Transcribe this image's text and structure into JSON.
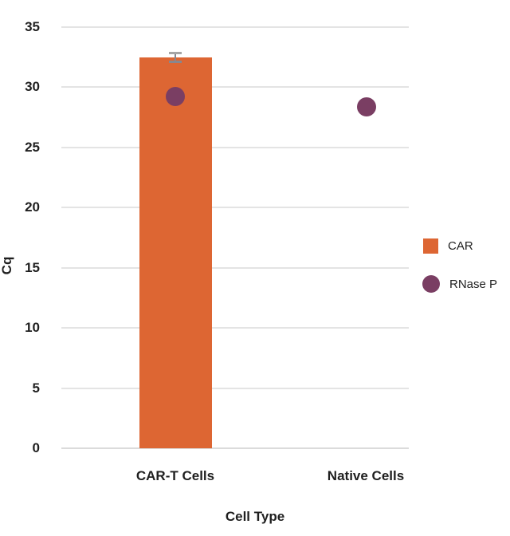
{
  "chart_data": {
    "type": "bar",
    "title": "",
    "xlabel": "Cell Type",
    "ylabel": "Cq",
    "categories": [
      "CAR-T Cells",
      "Native Cells"
    ],
    "series": [
      {
        "name": "CAR",
        "kind": "bar",
        "color": "#DD6633",
        "values": [
          32.5,
          null
        ],
        "error": [
          0.35,
          null
        ]
      },
      {
        "name": "RNase P",
        "kind": "point",
        "color": "#7A3E63",
        "values": [
          29.2,
          28.4
        ]
      }
    ],
    "ylim": [
      0,
      35
    ],
    "ytick_step": 5,
    "yticks": [
      0,
      5,
      10,
      15,
      20,
      25,
      30,
      35
    ],
    "grid": true,
    "legend_position": "right",
    "colors": {
      "gridline": "#E4E4E4",
      "baseline": "#DBDBDB",
      "error_bar": "#87878F",
      "error_cap": "#A6A6A6",
      "text": "#1F1F1F"
    }
  }
}
